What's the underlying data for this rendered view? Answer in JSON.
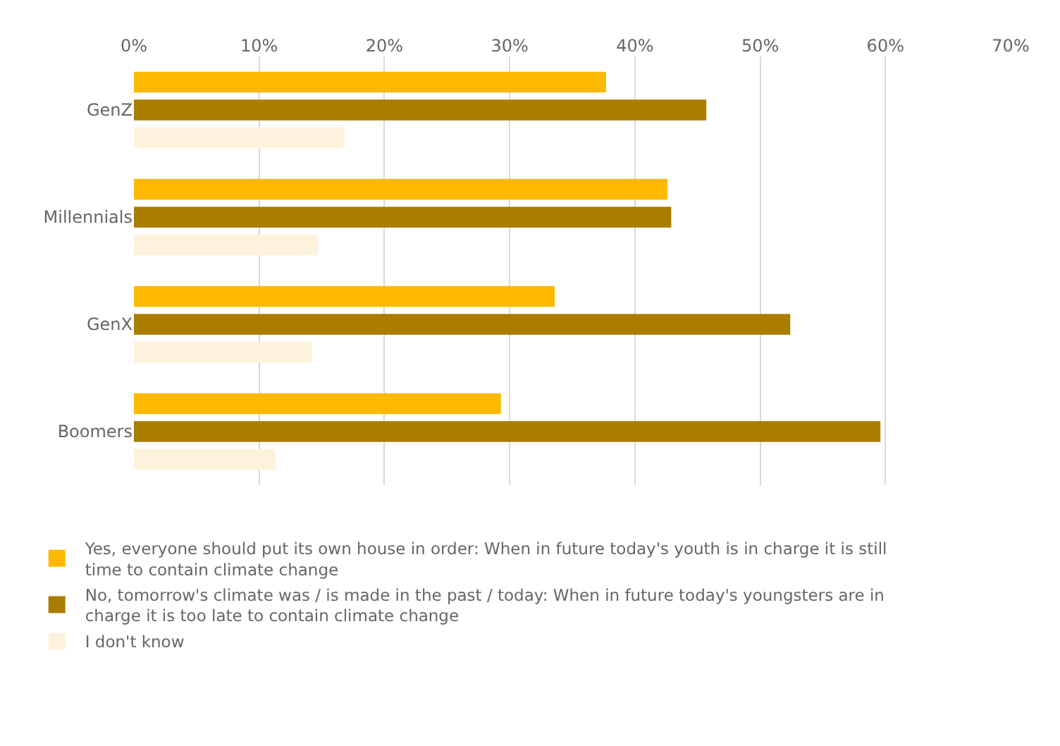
{
  "chart_data": {
    "type": "bar",
    "orientation": "horizontal",
    "categories": [
      "GenZ",
      "Millennials",
      "GenX",
      "Boomers"
    ],
    "series": [
      {
        "name": "Yes, everyone should put its own house in order: When in future today's youth is in charge it is still time to contain climate change",
        "color": "#fcb900",
        "values": [
          37.7,
          42.6,
          33.6,
          29.3
        ]
      },
      {
        "name": "No, tomorrow's climate was / is made in the past / today: When in future today's youngsters are in charge it is too late to contain climate change",
        "color": "#a97d00",
        "values": [
          45.7,
          42.9,
          52.4,
          59.6
        ]
      },
      {
        "name": "I don't know",
        "color": "#fdf3dc",
        "values": [
          16.8,
          14.7,
          14.2,
          11.3
        ]
      }
    ],
    "xlim": [
      0,
      70
    ],
    "xticks": [
      {
        "value": 0,
        "label": "0%"
      },
      {
        "value": 10,
        "label": "10%"
      },
      {
        "value": 20,
        "label": "20%"
      },
      {
        "value": 30,
        "label": "30%"
      },
      {
        "value": 40,
        "label": "40%"
      },
      {
        "value": 50,
        "label": "50%"
      },
      {
        "value": 60,
        "label": "60%"
      },
      {
        "value": 70,
        "label": "70%"
      }
    ],
    "grid": "x",
    "legend": "bottom"
  }
}
